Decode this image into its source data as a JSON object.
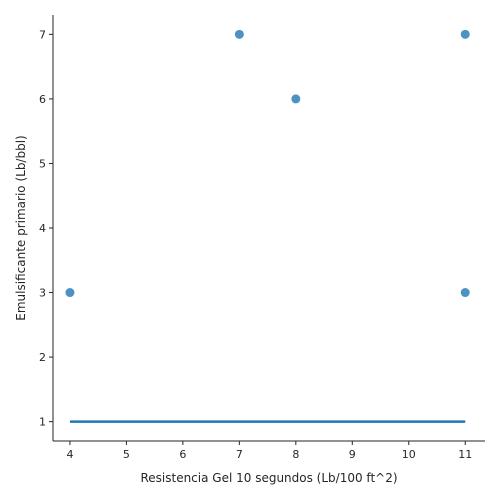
{
  "chart_data": {
    "type": "scatter",
    "title": "",
    "xlabel": "Resistencia Gel 10 segundos (Lb/100 ft^2)",
    "ylabel": "Emulsificante primario (Lb/bbl)",
    "xlim": [
      3.7,
      11.35
    ],
    "ylim": [
      0.7,
      7.3
    ],
    "xticks": [
      4,
      5,
      6,
      7,
      8,
      9,
      10,
      11
    ],
    "yticks": [
      1,
      2,
      3,
      4,
      5,
      6,
      7
    ],
    "grid": false,
    "points": [
      {
        "x": 4,
        "y": 3
      },
      {
        "x": 7,
        "y": 7
      },
      {
        "x": 8,
        "y": 6
      },
      {
        "x": 11,
        "y": 7
      },
      {
        "x": 11,
        "y": 3
      }
    ],
    "fit_line": {
      "x": [
        4,
        11
      ],
      "y": [
        1,
        1
      ]
    },
    "colors": {
      "point": "#1f77b4",
      "line": "#1f77b4"
    }
  }
}
